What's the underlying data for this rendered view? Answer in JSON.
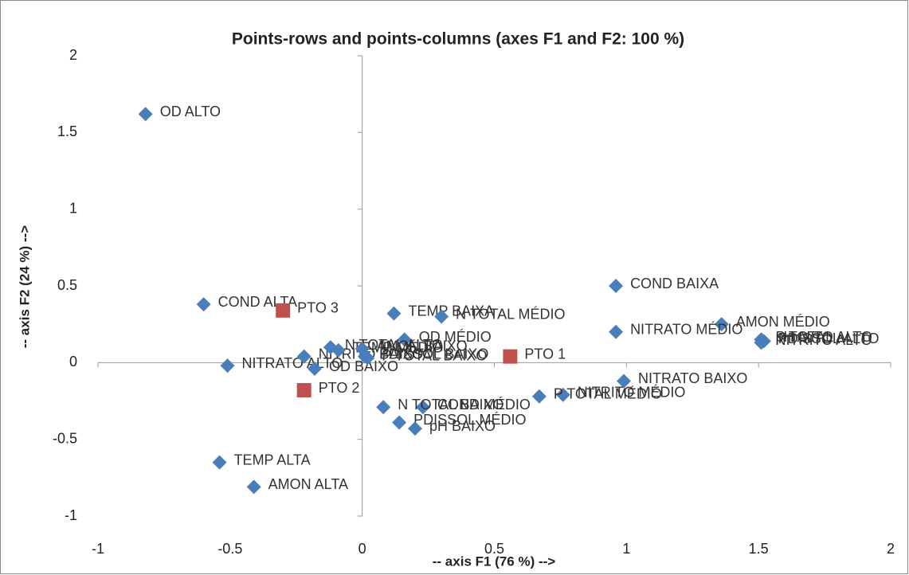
{
  "chart_data": {
    "type": "scatter",
    "title": "Points-rows and points-columns (axes F1 and F2: 100 %)",
    "x_label": "-- axis F1 (76 %) -->",
    "y_label": "-- axis F2 (24 %) -->",
    "xlim": [
      -1,
      2
    ],
    "xticks": [
      -1,
      -0.5,
      0,
      0.5,
      1,
      1.5,
      2
    ],
    "ylim": [
      -1,
      2
    ],
    "yticks": [
      -1,
      -0.5,
      0,
      0.5,
      1,
      1.5,
      2
    ],
    "series": [
      {
        "color": "#4a7ebb",
        "marker": "diamond",
        "labels": [
          "OD ALTO",
          "COND ALTA",
          "TEMP BAIXA",
          "N TOTAL MÉDIO",
          "COND BAIXA",
          "AMON MÉDIO",
          "NITRATO MÉDIO",
          "P TOTAL ALTO",
          "PDISSOL ALTO",
          "NITRITO ALTO",
          "pH ALTO",
          "OD MÉDIO",
          "NITRATO BAIXO",
          "NITRITO MÉDIO",
          "P TOTAL MÉDIO",
          "COND MÉDIO",
          "N TOTAL BAIXO",
          "PDISSOL MÉDIO",
          "pH BAIXO",
          "TEMP ALTA",
          "AMON ALTA",
          "NITRATO ALTO",
          "OD BAIXO",
          "NITRITO BAIXO",
          "N TOTAL ALTO",
          "TEMP MÉDIO",
          "AMON BAIXO",
          "PDISSOL BAIXO",
          "P TOTAL BAIXO"
        ],
        "x": [
          -0.82,
          -0.6,
          0.12,
          0.3,
          0.96,
          1.36,
          0.96,
          1.51,
          1.52,
          1.51,
          1.51,
          0.16,
          0.99,
          0.76,
          0.67,
          0.23,
          0.08,
          0.14,
          0.2,
          -0.54,
          -0.41,
          -0.51,
          -0.18,
          -0.22,
          -0.12,
          -0.09,
          0.0,
          0.01,
          0.02
        ],
        "y": [
          1.62,
          0.38,
          0.32,
          0.3,
          0.5,
          0.25,
          0.2,
          0.15,
          0.14,
          0.13,
          0.15,
          0.15,
          -0.12,
          -0.21,
          -0.22,
          -0.29,
          -0.29,
          -0.39,
          -0.43,
          -0.65,
          -0.81,
          -0.02,
          -0.04,
          0.04,
          0.1,
          0.08,
          0.09,
          0.04,
          0.03
        ]
      },
      {
        "color": "#c0504d",
        "marker": "square",
        "labels": [
          "PTO 1",
          "PTO 2",
          "PTO 3"
        ],
        "x": [
          0.56,
          -0.22,
          -0.3
        ],
        "y": [
          0.04,
          -0.18,
          0.34
        ]
      }
    ]
  }
}
